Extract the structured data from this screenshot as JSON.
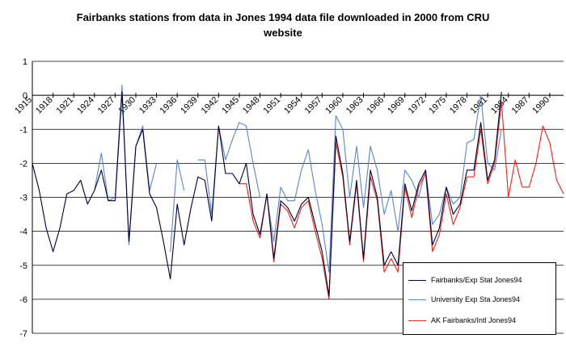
{
  "chart_data": {
    "type": "line",
    "title": "Fairbanks stations from data in Jones 1994 data file downloaded in 2000 from CRU\nwebsite",
    "xlabel": "",
    "ylabel": "",
    "xlim": [
      1915,
      1992
    ],
    "ylim": [
      -7,
      1
    ],
    "yticks": [
      1,
      0,
      -1,
      -2,
      -3,
      -4,
      -5,
      -6,
      -7
    ],
    "xticks": [
      1915,
      1918,
      1921,
      1924,
      1927,
      1930,
      1933,
      1936,
      1939,
      1942,
      1945,
      1948,
      1951,
      1954,
      1957,
      1960,
      1963,
      1966,
      1969,
      1972,
      1975,
      1978,
      1981,
      1984,
      1987,
      1990
    ],
    "grid": "horizontal",
    "legend_position": "bottom-right",
    "series": [
      {
        "name": "Fairbanks/Exp Stat Jones94",
        "color": "#000033",
        "points": [
          [
            1915,
            -2.0
          ],
          [
            1916,
            -2.8
          ],
          [
            1917,
            -3.9
          ],
          [
            1918,
            -4.6
          ],
          [
            1919,
            -3.9
          ],
          [
            1920,
            -2.9
          ],
          [
            1921,
            -2.8
          ],
          [
            1922,
            -2.5
          ],
          [
            1923,
            -3.2
          ],
          [
            1924,
            -2.8
          ],
          [
            1925,
            -2.2
          ],
          [
            1926,
            -3.1
          ],
          [
            1927,
            -3.1
          ],
          [
            1928,
            0.1
          ],
          [
            1929,
            -4.3
          ],
          [
            1930,
            -1.5
          ],
          [
            1931,
            -1.0
          ],
          [
            1932,
            -2.9
          ],
          [
            1933,
            -3.3
          ],
          [
            1934,
            -4.3
          ],
          [
            1935,
            -5.4
          ],
          [
            1936,
            -3.2
          ],
          [
            1937,
            -4.4
          ],
          [
            1938,
            -3.3
          ],
          [
            1939,
            -2.4
          ],
          [
            1940,
            -2.5
          ],
          [
            1941,
            -3.7
          ],
          [
            1942,
            -0.9
          ],
          [
            1943,
            -2.3
          ],
          [
            1944,
            -2.3
          ],
          [
            1945,
            -2.6
          ],
          [
            1946,
            -2.0
          ],
          [
            1947,
            -3.5
          ],
          [
            1948,
            -4.1
          ],
          [
            1949,
            -2.9
          ],
          [
            1950,
            -4.8
          ],
          [
            1951,
            -3.1
          ],
          [
            1952,
            -3.3
          ],
          [
            1953,
            -3.7
          ],
          [
            1954,
            -3.2
          ],
          [
            1955,
            -3.0
          ],
          [
            1956,
            -3.8
          ],
          [
            1957,
            -4.6
          ],
          [
            1958,
            -5.9
          ],
          [
            1959,
            -1.2
          ],
          [
            1960,
            -2.3
          ],
          [
            1961,
            -4.3
          ],
          [
            1962,
            -2.5
          ],
          [
            1963,
            -4.8
          ],
          [
            1964,
            -2.2
          ],
          [
            1965,
            -3.0
          ],
          [
            1966,
            -5.0
          ],
          [
            1967,
            -4.6
          ],
          [
            1968,
            -5.0
          ],
          [
            1969,
            -2.6
          ],
          [
            1970,
            -3.4
          ],
          [
            1971,
            -2.6
          ],
          [
            1972,
            -2.2
          ],
          [
            1973,
            -4.4
          ],
          [
            1974,
            -3.9
          ],
          [
            1975,
            -2.7
          ],
          [
            1976,
            -3.5
          ],
          [
            1977,
            -3.2
          ],
          [
            1978,
            -2.2
          ],
          [
            1979,
            -2.2
          ],
          [
            1980,
            -0.8
          ],
          [
            1981,
            -2.5
          ],
          [
            1982,
            -1.9
          ],
          [
            1983,
            0.1
          ]
        ]
      },
      {
        "name": "University Exp Sta Jones94",
        "color": "#5B86C6",
        "points": [
          [
            1924,
            -2.8
          ],
          [
            1925,
            -1.7
          ],
          [
            1926,
            -3.1
          ],
          [
            1927,
            -3.0
          ],
          [
            1928,
            0.3
          ],
          [
            1929,
            -4.4
          ],
          [
            1930,
            -1.5
          ],
          [
            1931,
            -0.9
          ],
          [
            1932,
            -2.8
          ],
          [
            1933,
            -2.0
          ],
          [
            1934,
            null
          ],
          [
            1935,
            -4.6
          ],
          [
            1936,
            -1.9
          ],
          [
            1937,
            -2.8
          ],
          [
            1938,
            null
          ],
          [
            1939,
            -1.9
          ],
          [
            1940,
            -1.9
          ],
          [
            1941,
            -3.5
          ],
          [
            1942,
            -0.9
          ],
          [
            1943,
            -1.9
          ],
          [
            1944,
            -1.3
          ],
          [
            1945,
            -0.8
          ],
          [
            1946,
            -0.9
          ],
          [
            1947,
            -2.0
          ],
          [
            1948,
            -3.0
          ],
          [
            1949,
            -3.0
          ],
          [
            1950,
            -4.3
          ],
          [
            1951,
            -2.7
          ],
          [
            1952,
            -3.1
          ],
          [
            1953,
            -3.1
          ],
          [
            1954,
            -2.2
          ],
          [
            1955,
            -1.6
          ],
          [
            1956,
            -2.8
          ],
          [
            1957,
            -3.8
          ],
          [
            1958,
            -5.2
          ],
          [
            1959,
            -0.6
          ],
          [
            1960,
            -1.0
          ],
          [
            1961,
            -3.0
          ],
          [
            1962,
            -1.5
          ],
          [
            1963,
            -3.3
          ],
          [
            1964,
            -1.5
          ],
          [
            1965,
            -2.2
          ],
          [
            1966,
            -3.5
          ],
          [
            1967,
            -2.8
          ],
          [
            1968,
            -4.0
          ],
          [
            1969,
            -2.2
          ],
          [
            1970,
            -2.5
          ],
          [
            1971,
            -3.0
          ],
          [
            1972,
            -2.2
          ],
          [
            1973,
            -3.8
          ],
          [
            1974,
            -3.5
          ],
          [
            1975,
            -2.7
          ],
          [
            1976,
            -3.2
          ],
          [
            1977,
            -3.0
          ],
          [
            1978,
            -1.4
          ],
          [
            1979,
            -1.3
          ],
          [
            1980,
            0.0
          ],
          [
            1981,
            -2.0
          ],
          [
            1982,
            -2.2
          ],
          [
            1983,
            -1.0
          ]
        ]
      },
      {
        "name": "AK Fairbanks/Intl Jones94",
        "color": "#E8241C",
        "points": [
          [
            1945,
            -2.6
          ],
          [
            1946,
            -2.6
          ],
          [
            1947,
            -3.7
          ],
          [
            1948,
            -4.2
          ],
          [
            1949,
            -2.9
          ],
          [
            1950,
            -4.9
          ],
          [
            1951,
            -3.2
          ],
          [
            1952,
            -3.4
          ],
          [
            1953,
            -3.9
          ],
          [
            1954,
            -3.3
          ],
          [
            1955,
            -3.1
          ],
          [
            1956,
            -4.0
          ],
          [
            1957,
            -4.8
          ],
          [
            1958,
            -6.0
          ],
          [
            1959,
            -1.4
          ],
          [
            1960,
            -2.4
          ],
          [
            1961,
            -4.4
          ],
          [
            1962,
            -2.6
          ],
          [
            1963,
            -4.9
          ],
          [
            1964,
            -2.4
          ],
          [
            1965,
            -3.1
          ],
          [
            1966,
            -5.2
          ],
          [
            1967,
            -4.8
          ],
          [
            1968,
            -5.2
          ],
          [
            1969,
            -2.7
          ],
          [
            1970,
            -3.6
          ],
          [
            1971,
            -2.7
          ],
          [
            1972,
            -2.3
          ],
          [
            1973,
            -4.6
          ],
          [
            1974,
            -4.1
          ],
          [
            1975,
            -2.9
          ],
          [
            1976,
            -3.8
          ],
          [
            1977,
            -3.3
          ],
          [
            1978,
            -2.4
          ],
          [
            1979,
            -2.4
          ],
          [
            1980,
            -1.0
          ],
          [
            1981,
            -2.6
          ],
          [
            1982,
            -2.0
          ],
          [
            1983,
            -0.2
          ],
          [
            1984,
            -3.0
          ],
          [
            1985,
            -1.9
          ],
          [
            1986,
            -2.7
          ],
          [
            1987,
            -2.7
          ],
          [
            1988,
            -2.0
          ],
          [
            1989,
            -0.9
          ],
          [
            1990,
            -1.4
          ],
          [
            1991,
            -2.5
          ],
          [
            1992,
            -2.9
          ]
        ]
      }
    ]
  }
}
